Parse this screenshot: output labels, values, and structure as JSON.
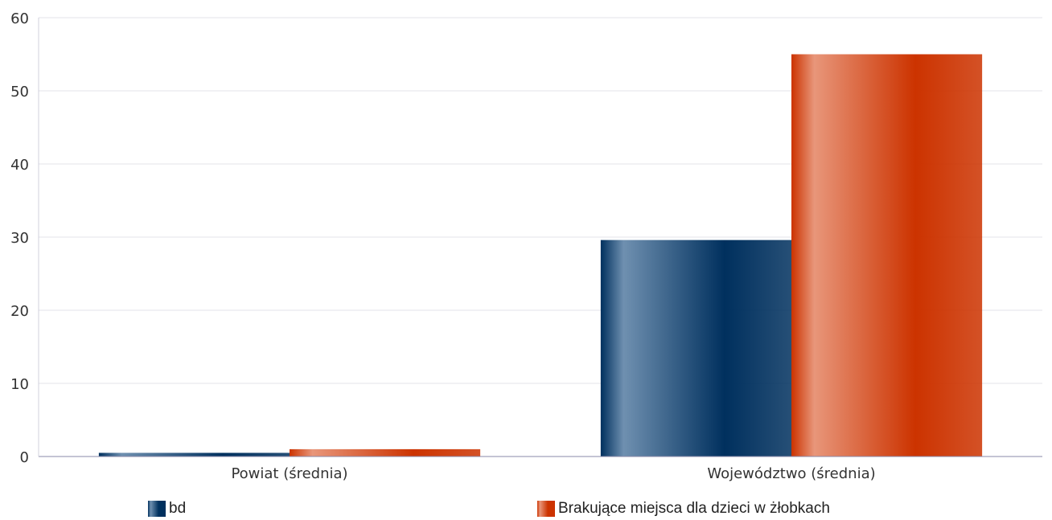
{
  "chart_data": {
    "type": "bar",
    "categories": [
      "Powiat (średnia)",
      "Województwo (średnia)"
    ],
    "series": [
      {
        "name": "bd",
        "values": [
          0.5,
          29.6
        ],
        "color": "#00305e",
        "highlight": "#6f90b0"
      },
      {
        "name": "Brakujące miejsca dla dzieci w żłobkach",
        "values": [
          1.0,
          55.0
        ],
        "color": "#cc3300",
        "highlight": "#e8967a"
      }
    ],
    "yticks": [
      0,
      10,
      20,
      30,
      40,
      50,
      60
    ],
    "ylim": [
      0,
      60
    ],
    "grid": true,
    "legend_position": "bottom"
  }
}
